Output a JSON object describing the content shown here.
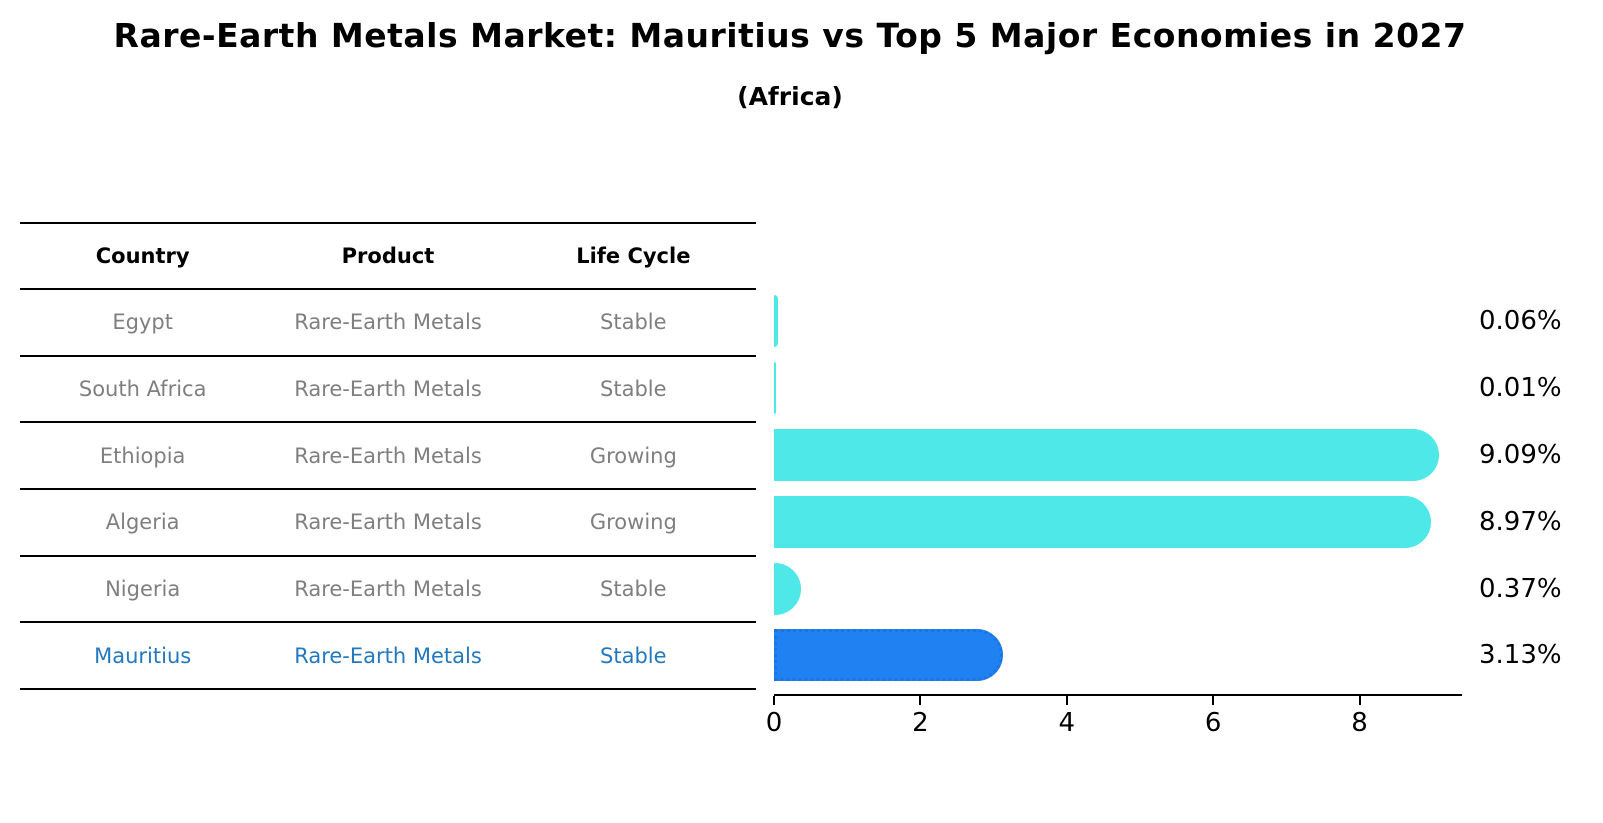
{
  "title": "Rare-Earth Metals Market: Mauritius vs Top 5 Major Economies in 2027",
  "subtitle": "(Africa)",
  "table": {
    "headers": [
      "Country",
      "Product",
      "Life Cycle"
    ],
    "rows": [
      {
        "country": "Egypt",
        "product": "Rare-Earth Metals",
        "life_cycle": "Stable",
        "highlight": false
      },
      {
        "country": "South Africa",
        "product": "Rare-Earth Metals",
        "life_cycle": "Stable",
        "highlight": false
      },
      {
        "country": "Ethiopia",
        "product": "Rare-Earth Metals",
        "life_cycle": "Growing",
        "highlight": false
      },
      {
        "country": "Algeria",
        "product": "Rare-Earth Metals",
        "life_cycle": "Growing",
        "highlight": false
      },
      {
        "country": "Nigeria",
        "product": "Rare-Earth Metals",
        "life_cycle": "Stable",
        "highlight": false
      },
      {
        "country": "Mauritius",
        "product": "Rare-Earth Metals",
        "life_cycle": "Stable",
        "highlight": true
      }
    ]
  },
  "chart_data": {
    "type": "bar",
    "orientation": "horizontal",
    "title": "Rare-Earth Metals Market: Mauritius vs Top 5 Major Economies in 2027",
    "subtitle": "(Africa)",
    "categories": [
      "Egypt",
      "South Africa",
      "Ethiopia",
      "Algeria",
      "Nigeria",
      "Mauritius"
    ],
    "values": [
      0.06,
      0.01,
      9.09,
      8.97,
      0.37,
      3.13
    ],
    "value_labels": [
      "0.06%",
      "0.01%",
      "9.09%",
      "8.97%",
      "0.37%",
      "3.13%"
    ],
    "xlabel": "",
    "ylabel": "",
    "xticks": [
      0,
      2,
      4,
      6,
      8
    ],
    "xlim": [
      0,
      9.4
    ],
    "grid": false,
    "legend": "none",
    "bar_color": "#4de8e7",
    "highlight_color": "#2081f2",
    "highlight_index": 5,
    "highlight_style": "dotted-border"
  },
  "colors": {
    "bar_cyan": "#4de8e7",
    "bar_blue": "#2081f2",
    "highlight_text": "#2478be",
    "body_text": "#7f7f7f",
    "heading_text": "#000000"
  }
}
